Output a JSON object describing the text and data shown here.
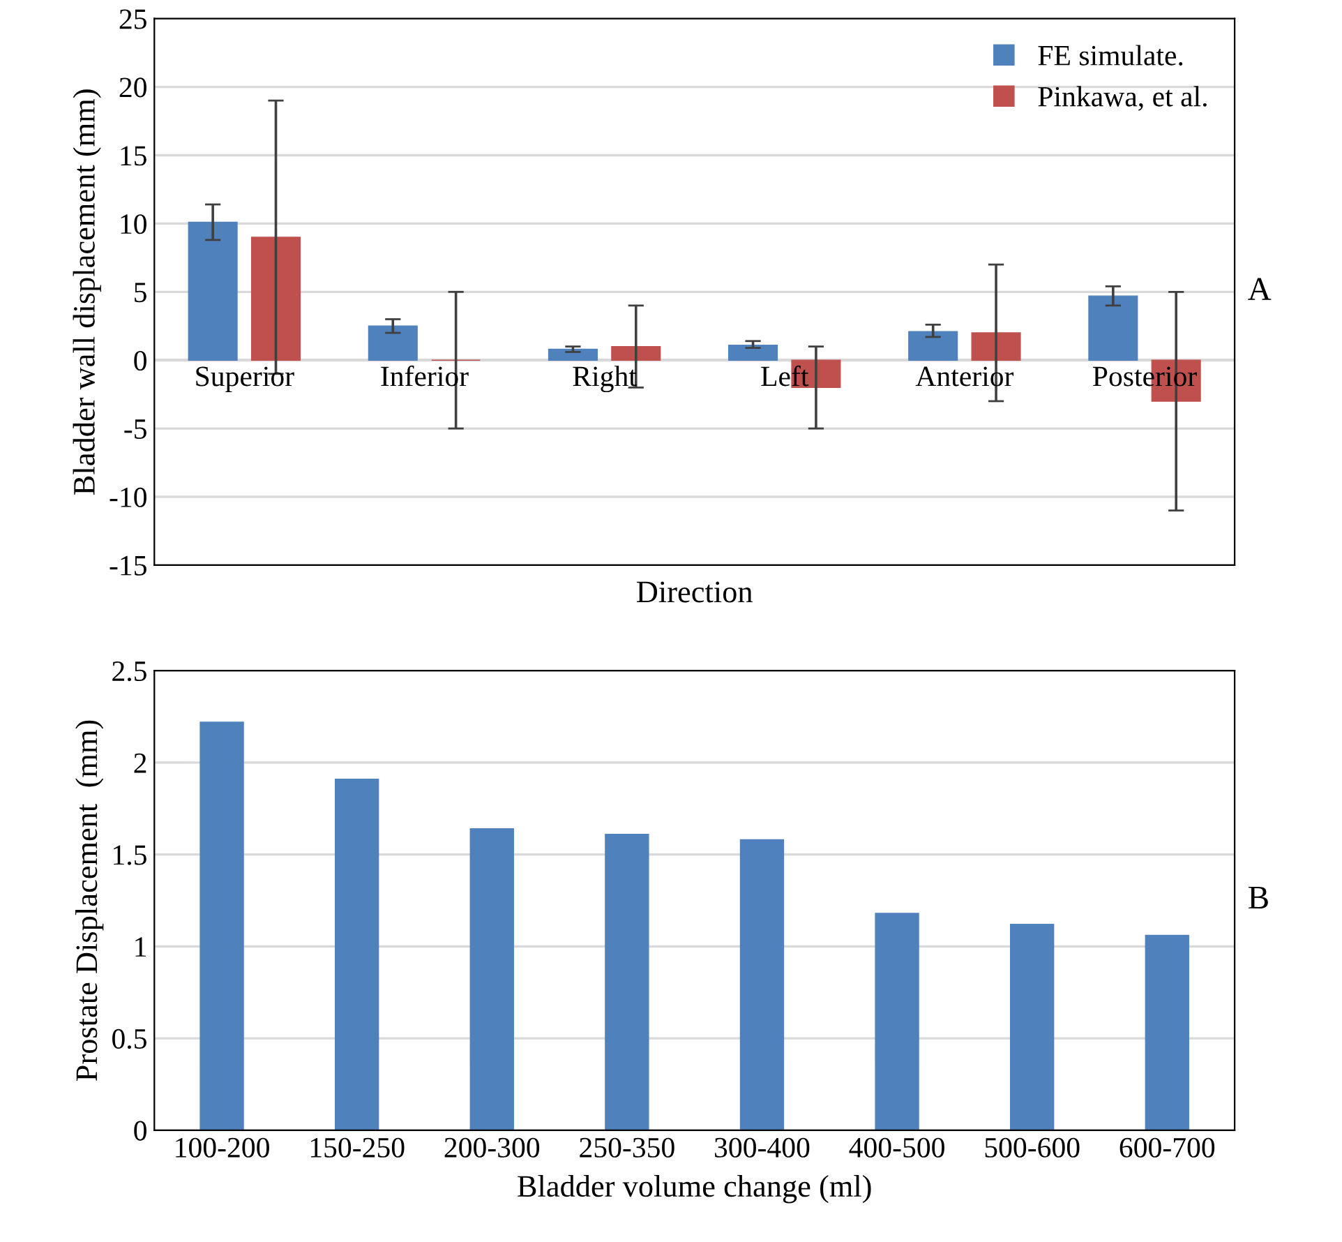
{
  "chart_data": [
    {
      "type": "bar",
      "xlabel": "Direction",
      "ylabel": "Bladder wall displacement (mm)",
      "categories": [
        "Superior",
        "Inferior",
        "Right",
        "Left",
        "Anterior",
        "Posterior"
      ],
      "series": [
        {
          "name": "FE simulate.",
          "color": "#4f81bd",
          "values": [
            10.1,
            2.5,
            0.8,
            1.1,
            2.1,
            4.7
          ],
          "errors": [
            [
              8.8,
              11.4
            ],
            [
              2.0,
              3.0
            ],
            [
              0.6,
              1.0
            ],
            [
              0.9,
              1.4
            ],
            [
              1.7,
              2.6
            ],
            [
              4.0,
              5.4
            ]
          ]
        },
        {
          "name": "Pinkawa, et al.",
          "color": "#c0504d",
          "values": [
            9,
            0,
            1,
            -2,
            2,
            -3
          ],
          "errors": [
            [
              -1,
              19
            ],
            [
              -5,
              5
            ],
            [
              -2,
              4
            ],
            [
              -5,
              1
            ],
            [
              -3,
              7
            ],
            [
              -11,
              5
            ]
          ]
        }
      ],
      "ylim": [
        -15,
        25
      ],
      "yticks": [
        -15,
        -10,
        -5,
        0,
        5,
        10,
        15,
        20,
        25
      ],
      "grid": "y",
      "legend": "top right",
      "annotations": [
        "A"
      ]
    },
    {
      "type": "bar",
      "xlabel": "Bladder volume change (ml)",
      "ylabel": "Prostate Displacement  (mm)",
      "categories": [
        "100-200",
        "150-250",
        "200-300",
        "250-350",
        "300-400",
        "400-500",
        "500-600",
        "600-700"
      ],
      "series": [
        {
          "color": "#4f81bd",
          "values": [
            2.22,
            1.91,
            1.64,
            1.61,
            1.58,
            1.18,
            1.12,
            1.06
          ]
        }
      ],
      "ylim": [
        0,
        2.5
      ],
      "yticks": [
        0,
        0.5,
        1,
        1.5,
        2,
        2.5
      ],
      "grid": "y",
      "annotations": [
        "B"
      ]
    }
  ]
}
